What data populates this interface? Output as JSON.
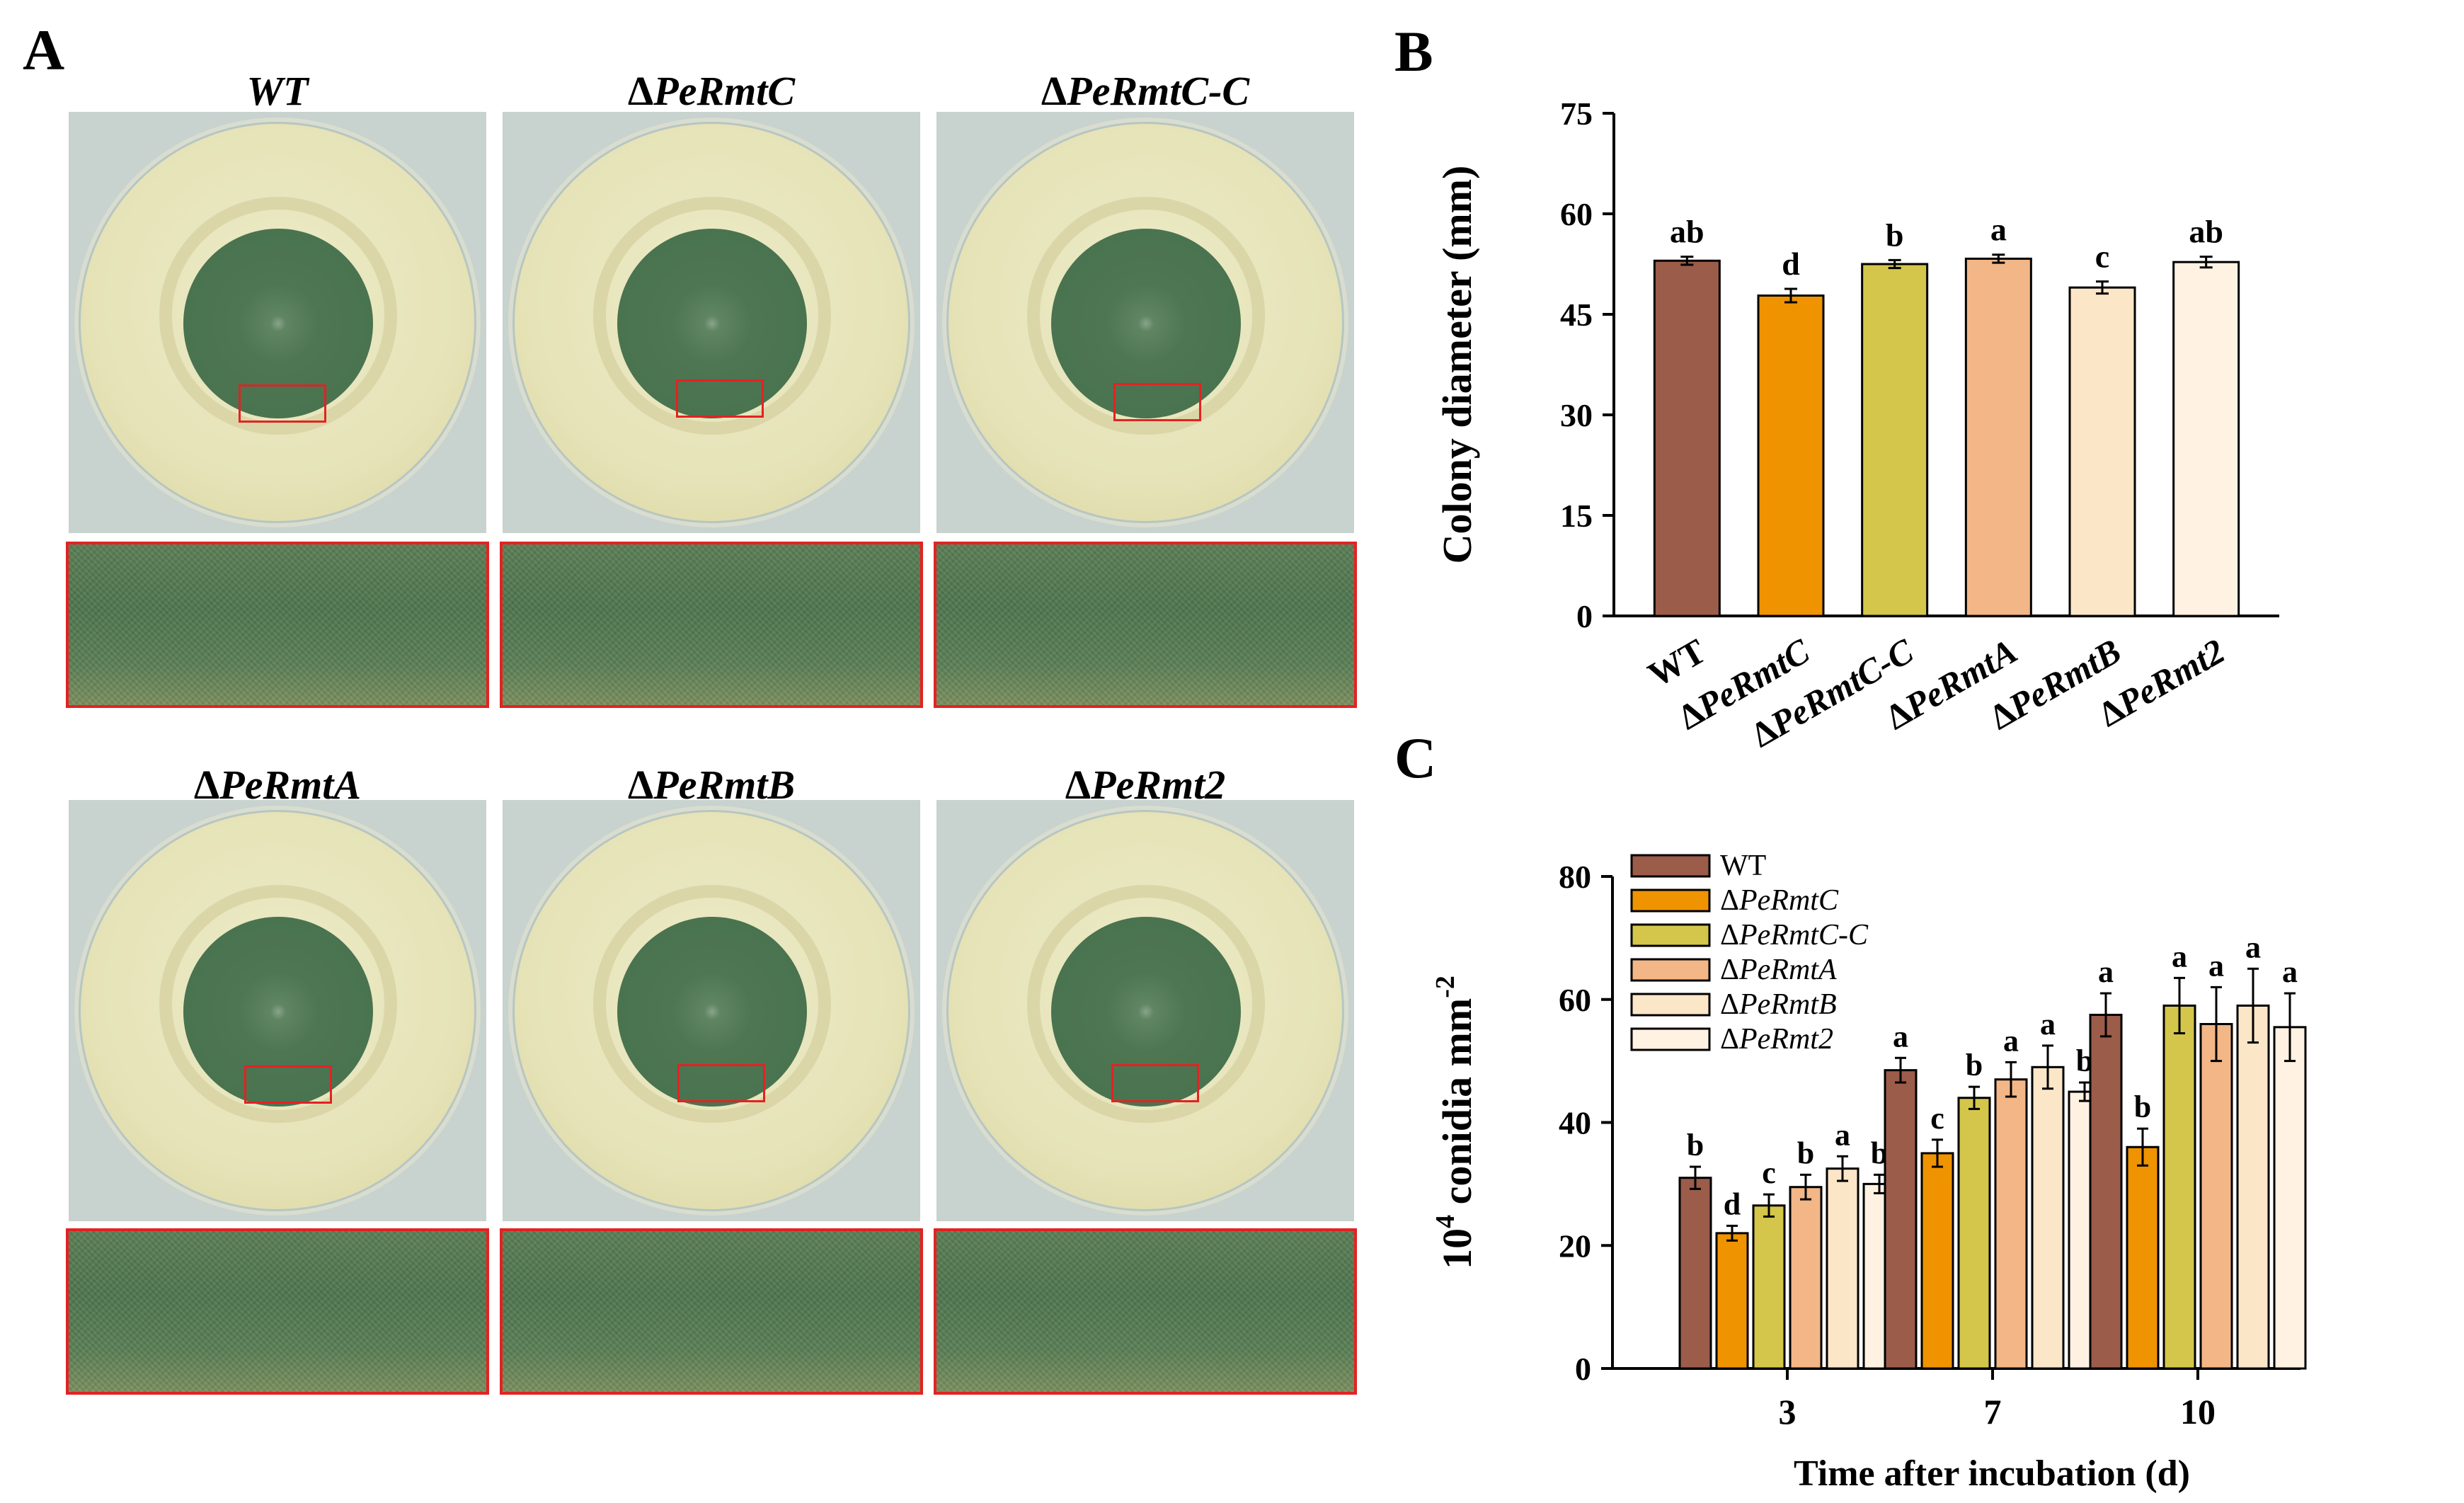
{
  "panel_a": {
    "letter": "A",
    "plates": [
      {
        "label_prefix": "",
        "label_italic": "WT"
      },
      {
        "label_prefix": "Δ",
        "label_italic": "PeRmtC"
      },
      {
        "label_prefix": "Δ",
        "label_italic": "PeRmtC-C"
      },
      {
        "label_prefix": "Δ",
        "label_italic": "PeRmtA"
      },
      {
        "label_prefix": "Δ",
        "label_italic": "PeRmtB"
      },
      {
        "label_prefix": "Δ",
        "label_italic": "PeRmt2"
      }
    ]
  },
  "chart_data": [
    {
      "panel": "B",
      "type": "bar",
      "ylabel": "Colony diameter (mm)",
      "xlabel": "",
      "ylim": [
        0,
        75
      ],
      "yticks": [
        "0",
        "15",
        "30",
        "45",
        "60",
        "75"
      ],
      "categories": [
        "WT",
        "ΔPeRmtC",
        "ΔPeRmtC-C",
        "ΔPeRmtA",
        "ΔPeRmtB",
        "ΔPeRmt2"
      ],
      "values": [
        53.0,
        47.8,
        52.5,
        53.3,
        49.0,
        52.8
      ],
      "errors": [
        0.6,
        1.0,
        0.6,
        0.6,
        0.9,
        0.8
      ],
      "letters": [
        "ab",
        "d",
        "b",
        "a",
        "c",
        "ab"
      ],
      "colors": [
        "#9b5c4a",
        "#ef9300",
        "#d3c64a",
        "#f3b686",
        "#fce6c8",
        "#fff2e2"
      ]
    },
    {
      "panel": "C",
      "type": "bar",
      "ylabel_base": "10",
      "ylabel_sup": "4",
      "ylabel_mid": " conidia mm",
      "ylabel_sup2": "-2",
      "xlabel": "Time after incubation (d)",
      "ylim": [
        0,
        80
      ],
      "yticks": [
        "0",
        "20",
        "40",
        "60",
        "80"
      ],
      "categories": [
        "3",
        "7",
        "10"
      ],
      "legend_placement": "top-left",
      "series": [
        {
          "name": "WT",
          "values": [
            31.0,
            48.5,
            57.5
          ],
          "errors": [
            1.8,
            2.0,
            3.5
          ],
          "letters": [
            "b",
            "a",
            "a"
          ],
          "color": "#9b5c4a"
        },
        {
          "name": "ΔPeRmtC",
          "values": [
            22.0,
            35.0,
            36.0
          ],
          "errors": [
            1.2,
            2.2,
            3.0
          ],
          "letters": [
            "d",
            "c",
            "b"
          ],
          "color": "#ef9300"
        },
        {
          "name": "ΔPeRmtC-C",
          "values": [
            26.5,
            44.0,
            59.0
          ],
          "errors": [
            1.8,
            1.8,
            4.5
          ],
          "letters": [
            "c",
            "b",
            "a"
          ],
          "color": "#d3c64a"
        },
        {
          "name": "ΔPeRmtA",
          "values": [
            29.5,
            47.0,
            56.0
          ],
          "errors": [
            2.0,
            2.8,
            6.0
          ],
          "letters": [
            "b",
            "a",
            "a"
          ],
          "color": "#f3b686"
        },
        {
          "name": "ΔPeRmtB",
          "values": [
            32.5,
            49.0,
            59.0
          ],
          "errors": [
            2.0,
            3.5,
            6.0
          ],
          "letters": [
            "a",
            "a",
            "a"
          ],
          "color": "#fce6c8"
        },
        {
          "name": "ΔPeRmt2",
          "values": [
            30.0,
            45.0,
            55.5
          ],
          "errors": [
            1.5,
            1.5,
            5.5
          ],
          "letters": [
            "b",
            "b",
            "a"
          ],
          "color": "#fff2e2"
        }
      ]
    }
  ]
}
